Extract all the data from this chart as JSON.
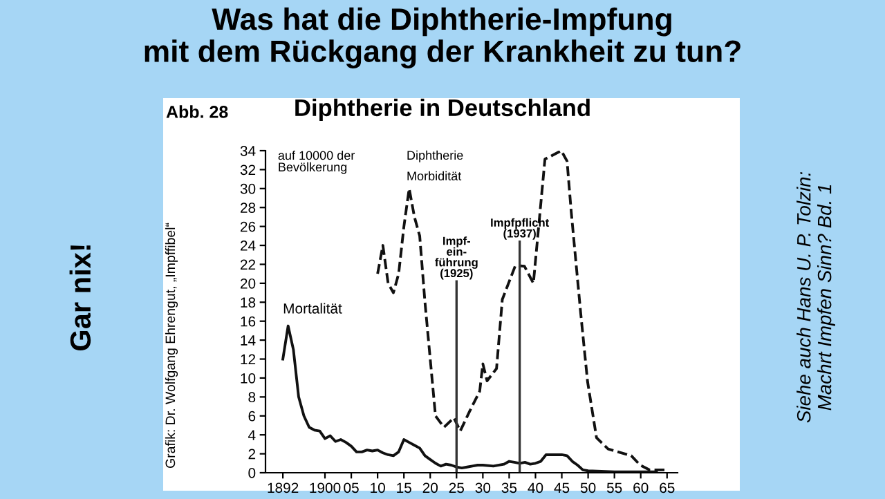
{
  "chart_data": {
    "type": "line",
    "title": "Was hat die Diphtherie-Impfung\nmit dem Rückgang der Krankheit zu tun?",
    "subtitle": "Diphtherie in Deutschland",
    "ylabel": "auf 10000 der\nBevölkerung",
    "series": [
      {
        "name": "Mortalität",
        "color": "#111111",
        "line_style": "solid",
        "x": [
          1892,
          1893,
          1894,
          1895,
          1896,
          1897,
          1898,
          1899,
          1900,
          1901,
          1902,
          1903,
          1904,
          1905,
          1906,
          1907,
          1908,
          1909,
          1910,
          1911,
          1912,
          1913,
          1914,
          1915,
          1916,
          1917,
          1918,
          1919,
          1920,
          1921,
          1922,
          1923,
          1924,
          1925,
          1926,
          1927,
          1928,
          1929,
          1930,
          1932,
          1934,
          1935,
          1936,
          1937,
          1938,
          1939,
          1940,
          1941,
          1942,
          1945,
          1946,
          1947,
          1948,
          1949,
          1950,
          1955,
          1960,
          1963
        ],
        "values": [
          12,
          15.5,
          13,
          8,
          6,
          4.8,
          4.5,
          4.4,
          3.6,
          3.9,
          3.3,
          3.5,
          3.2,
          2.8,
          2.2,
          2.2,
          2.4,
          2.3,
          2.4,
          2.1,
          1.9,
          1.8,
          2.2,
          3.5,
          3.2,
          2.9,
          2.6,
          1.8,
          1.4,
          1.0,
          0.7,
          0.9,
          0.8,
          0.6,
          0.5,
          0.6,
          0.7,
          0.8,
          0.8,
          0.7,
          0.9,
          1.2,
          1.1,
          1.0,
          1.1,
          0.9,
          1.0,
          1.2,
          1.9,
          1.9,
          1.8,
          1.2,
          0.8,
          0.3,
          0.2,
          0.1,
          0.1,
          0.1
        ]
      },
      {
        "name": "Morbidität",
        "color": "#111111",
        "line_style": "dashed",
        "x": [
          1910,
          1911,
          1912,
          1913,
          1914,
          1915,
          1916,
          1917,
          1918,
          1919,
          1920,
          1921,
          1922.6,
          1924.5,
          1925.7,
          1927.5,
          1929.4,
          1930,
          1930.8,
          1932.6,
          1933.7,
          1936.2,
          1937.9,
          1939.6,
          1941.8,
          1944.9,
          1946,
          1946.8,
          1948.6,
          1949.9,
          1951.6,
          1953.8,
          1958.2,
          1959.9,
          1961.7,
          1964.8
        ],
        "values": [
          21,
          24,
          20,
          19,
          21,
          26,
          30,
          27,
          25,
          18,
          12,
          6,
          4.8,
          5.8,
          4.4,
          6.5,
          8.6,
          11.5,
          9.7,
          11,
          18.3,
          21.9,
          21.8,
          20,
          33.1,
          34,
          32.9,
          27.5,
          16.8,
          9.6,
          3.7,
          2.5,
          1.8,
          0.8,
          0.3,
          0.3
        ]
      }
    ],
    "xlim": [
      1888.7,
      1967
    ],
    "xticks": [
      1892,
      1900,
      {
        "value": 1905,
        "label": "05"
      },
      {
        "value": 1910,
        "label": "10"
      },
      {
        "value": 1915,
        "label": "15"
      },
      {
        "value": 1920,
        "label": "20"
      },
      {
        "value": 1925,
        "label": "25"
      },
      {
        "value": 1930,
        "label": "30"
      },
      {
        "value": 1935,
        "label": "35"
      },
      {
        "value": 1940,
        "label": "40"
      },
      {
        "value": 1945,
        "label": "45"
      },
      {
        "value": 1950,
        "label": "50"
      },
      {
        "value": 1955,
        "label": "55"
      },
      {
        "value": 1960,
        "label": "60"
      },
      {
        "value": 1965,
        "label": "65"
      }
    ],
    "ylim": [
      0,
      34
    ],
    "yticks": [
      0,
      2,
      4,
      6,
      8,
      10,
      12,
      14,
      16,
      18,
      20,
      22,
      24,
      26,
      28,
      30,
      32,
      34
    ],
    "ref_lines": [
      {
        "axis": "x",
        "value": 1925,
        "label": "Impf-\nein-\nführung\n(1925)",
        "color": "#333333"
      },
      {
        "axis": "x",
        "value": 1937,
        "label": "Impfpflicht\n(1937)",
        "color": "#333333"
      }
    ],
    "grid": false,
    "legend": false,
    "annotations": [
      "Abb. 28",
      "Diphtherie",
      "Grafik: Dr. Wolfgang Ehrengut, „Impffibel“",
      "Gar nix!",
      "Siehe auch Hans U. P. Tolzin:\nMachrt Impfen Sinn? Bd. 1"
    ]
  }
}
